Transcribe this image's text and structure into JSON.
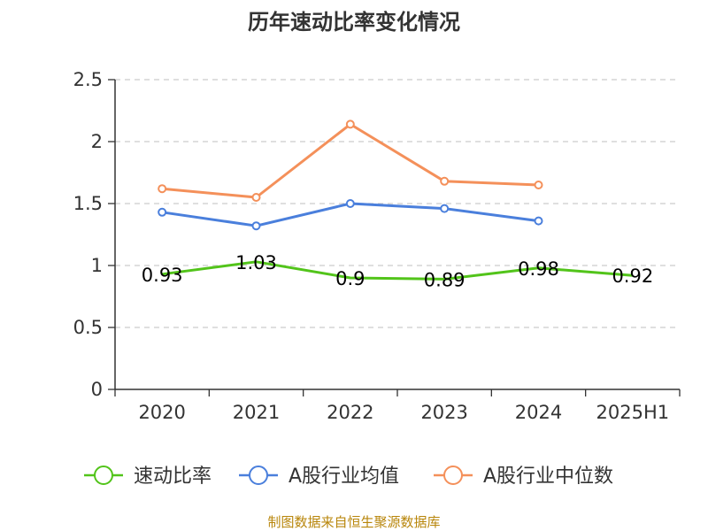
{
  "chart_data": {
    "type": "line",
    "title": "历年速动比率变化情况",
    "categories": [
      "2020",
      "2021",
      "2022",
      "2023",
      "2024",
      "2025H1"
    ],
    "y_ticks": [
      "0",
      "0.5",
      "1",
      "1.5",
      "2",
      "2.5"
    ],
    "ylim": [
      0,
      2.5
    ],
    "grid": true,
    "legend_position": "bottom",
    "series": [
      {
        "name": "速动比率",
        "color": "#52c41a",
        "values": [
          0.93,
          1.03,
          0.9,
          0.89,
          0.98,
          0.92
        ],
        "labels": [
          "0.93",
          "1.03",
          "0.9",
          "0.89",
          "0.98",
          "0.92"
        ],
        "show_labels": true,
        "show_markers": false
      },
      {
        "name": "A股行业均值",
        "color": "#4a7fdc",
        "values": [
          1.43,
          1.32,
          1.5,
          1.46,
          1.36,
          null
        ],
        "show_labels": false,
        "show_markers": true
      },
      {
        "name": "A股行业中位数",
        "color": "#f4905a",
        "values": [
          1.62,
          1.55,
          2.14,
          1.68,
          1.65,
          null
        ],
        "show_labels": false,
        "show_markers": true
      }
    ],
    "source": "制图数据来自恒生聚源数据库"
  }
}
